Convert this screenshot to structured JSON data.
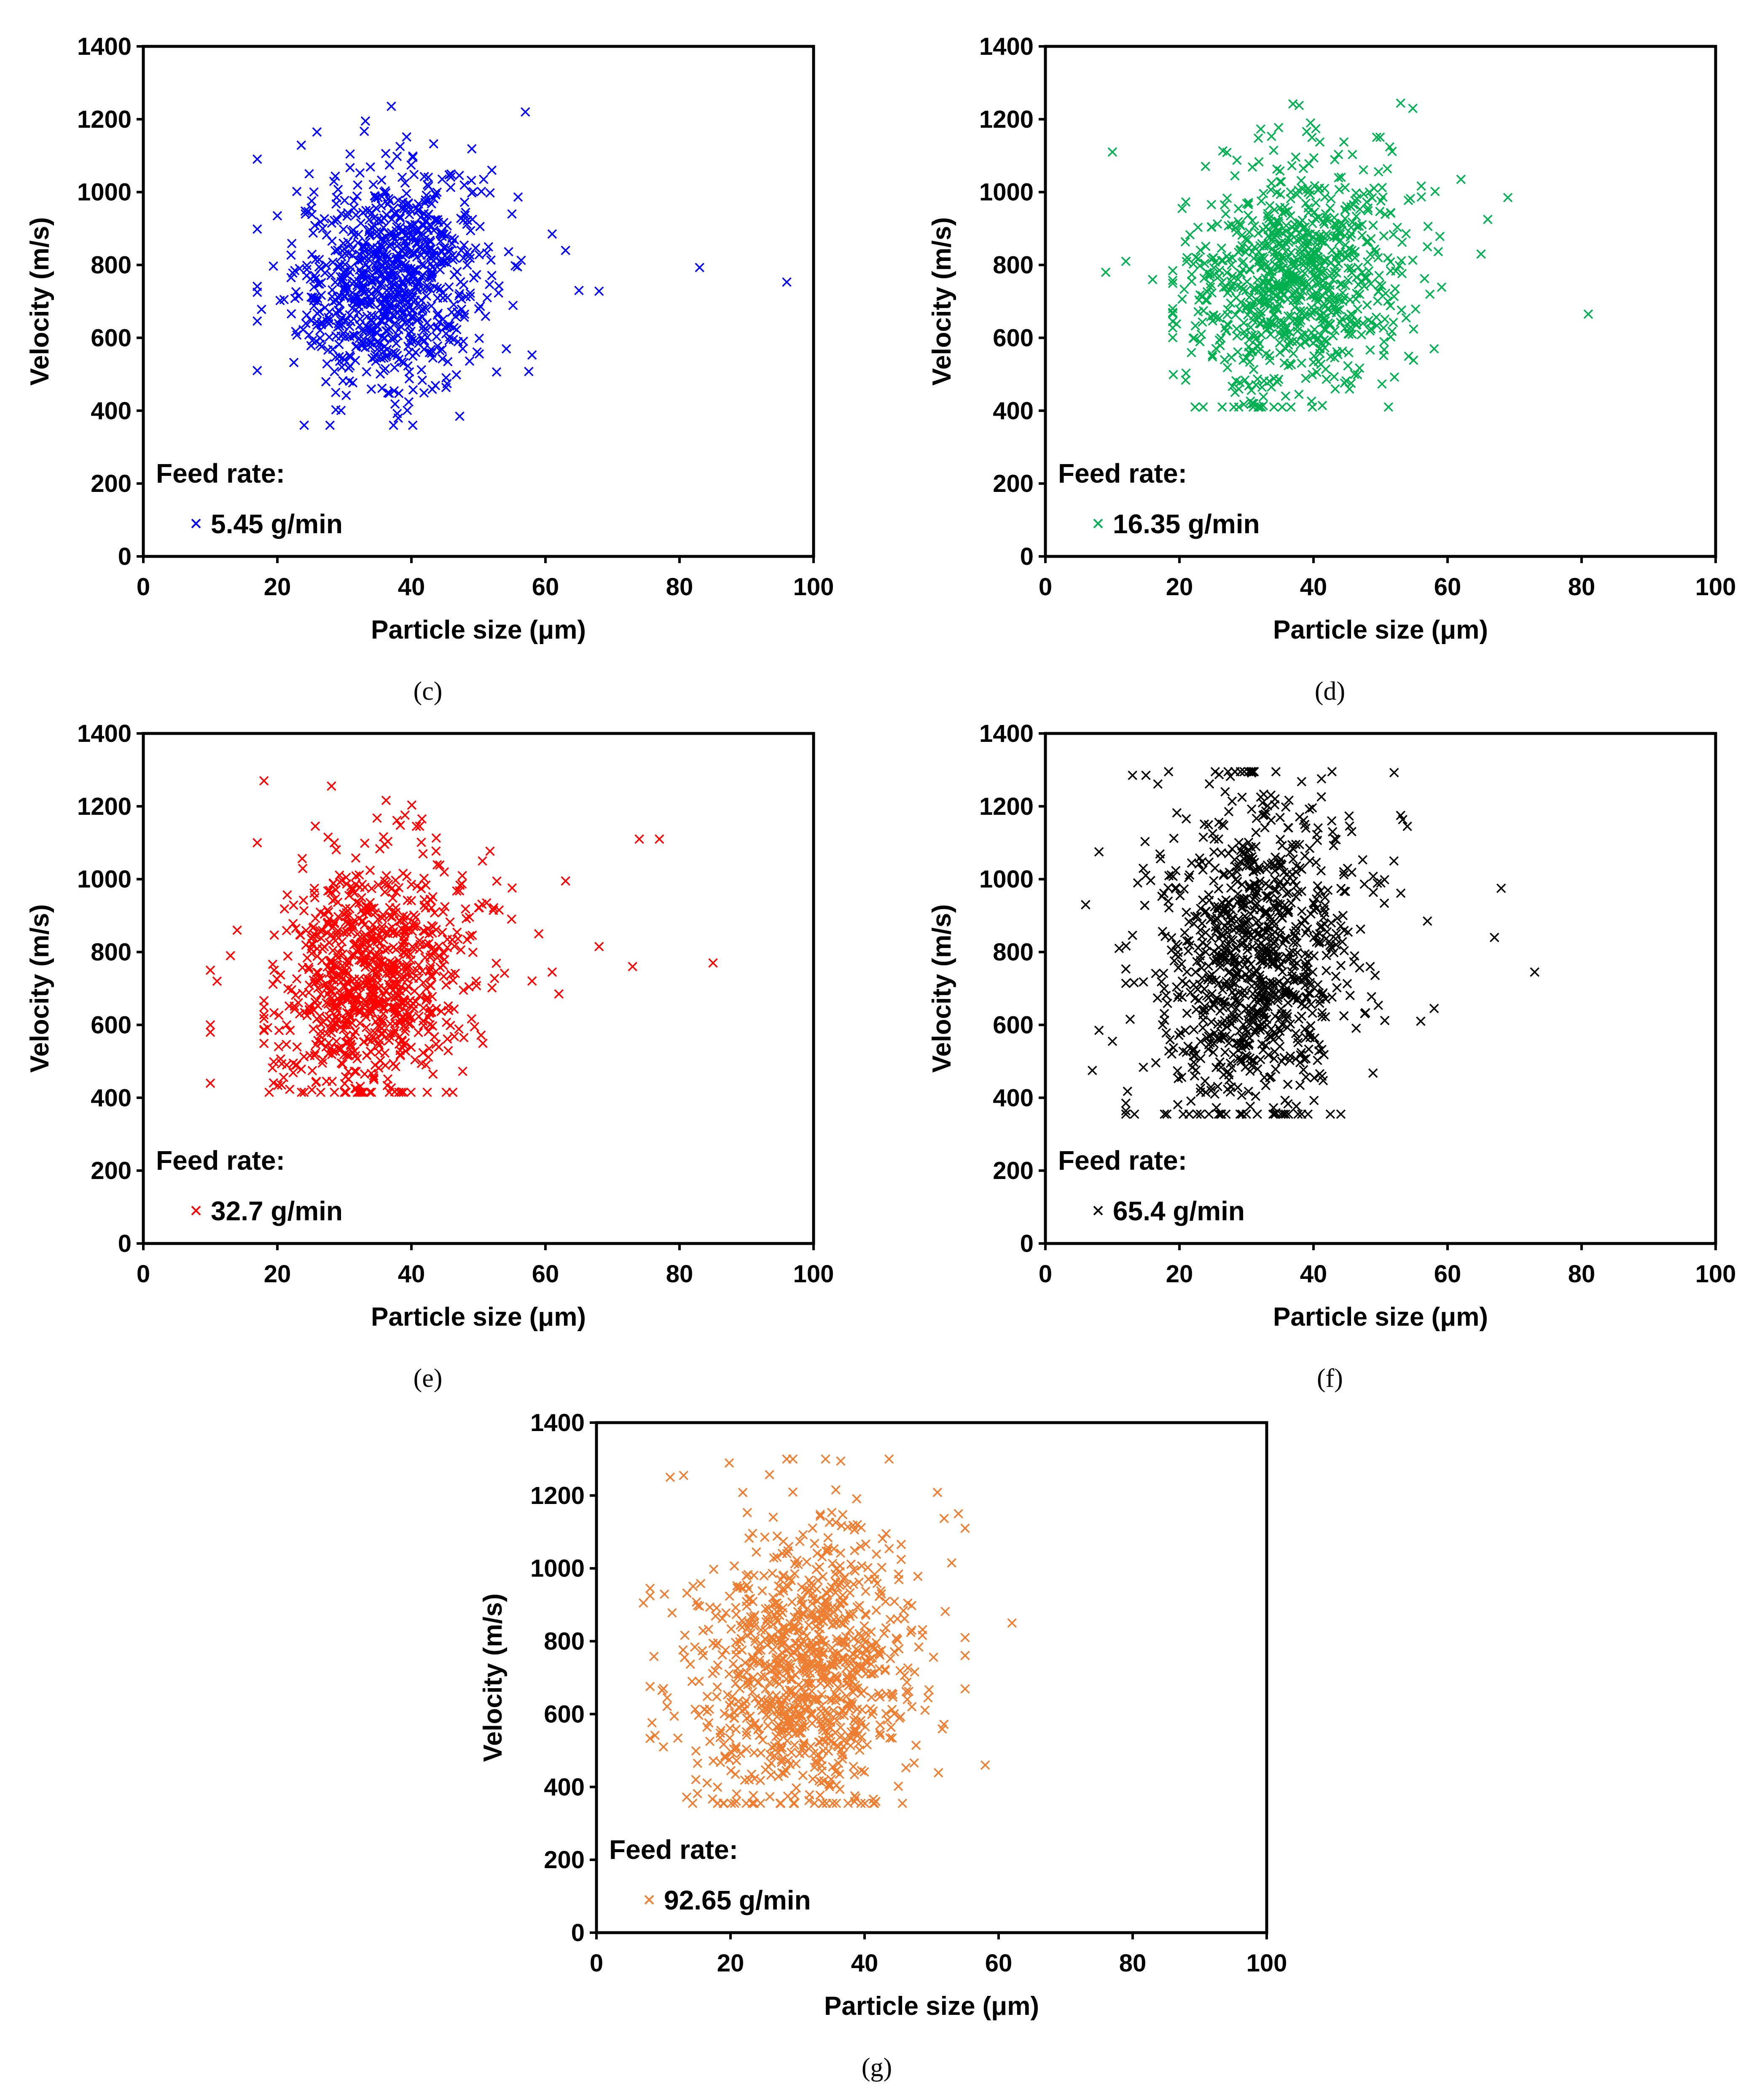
{
  "figure": {
    "panels": [
      {
        "id": "c",
        "caption_label": "(c)",
        "legend_title": "Feed rate:",
        "legend_entry": "5.45 g/min",
        "color": "#0000ff"
      },
      {
        "id": "d",
        "caption_label": "(d)",
        "legend_title": "Feed rate:",
        "legend_entry": "16.35 g/min",
        "color": "#00b050"
      },
      {
        "id": "e",
        "caption_label": "(e)",
        "legend_title": "Feed rate:",
        "legend_entry": "32.7 g/min",
        "color": "#ff0000"
      },
      {
        "id": "f",
        "caption_label": "(f)",
        "legend_title": "Feed rate:",
        "legend_entry": "65.4 g/min",
        "color": "#000000"
      },
      {
        "id": "g",
        "caption_label": "(g)",
        "legend_title": "Feed rate:",
        "legend_entry": "92.65 g/min",
        "color": "#ed7d31"
      }
    ]
  },
  "chart_data": [
    {
      "panel": "c",
      "type": "scatter",
      "marker": "x",
      "color": "#0000ff",
      "xlabel": "Particle size (μm)",
      "ylabel": "Velocity (m/s)",
      "xlim": [
        0,
        100
      ],
      "ylim": [
        0,
        1400
      ],
      "xticks": [
        0,
        20,
        40,
        60,
        80,
        100
      ],
      "yticks": [
        0,
        200,
        400,
        600,
        800,
        1000,
        1200,
        1400
      ],
      "legend_title": "Feed rate:",
      "series": [
        {
          "name": "5.45 g/min"
        }
      ],
      "cloud": {
        "n": 900,
        "x_mean": 37,
        "x_sd": 7,
        "y_mean": 760,
        "y_sd": 150,
        "x_range": [
          17,
          66
        ],
        "y_range": [
          360,
          1270
        ]
      },
      "outliers": [
        [
          17,
          725
        ],
        [
          20,
          935
        ],
        [
          21,
          705
        ],
        [
          24,
          360
        ],
        [
          83,
          793
        ],
        [
          96,
          753
        ],
        [
          57,
          1220
        ],
        [
          61,
          885
        ],
        [
          63,
          840
        ],
        [
          65,
          730
        ],
        [
          68,
          728
        ],
        [
          52,
          1060
        ],
        [
          55,
          940
        ]
      ]
    },
    {
      "panel": "d",
      "type": "scatter",
      "marker": "x",
      "color": "#00b050",
      "xlabel": "Particle size (μm)",
      "ylabel": "Velocity (m/s)",
      "xlim": [
        0,
        100
      ],
      "ylim": [
        0,
        1400
      ],
      "xticks": [
        0,
        20,
        40,
        60,
        80,
        100
      ],
      "yticks": [
        0,
        200,
        400,
        600,
        800,
        1000,
        1200,
        1400
      ],
      "legend_title": "Feed rate:",
      "series": [
        {
          "name": "16.35 g/min"
        }
      ],
      "cloud": {
        "n": 900,
        "x_mean": 37,
        "x_sd": 8,
        "y_mean": 770,
        "y_sd": 160,
        "x_range": [
          19,
          66
        ],
        "y_range": [
          410,
          1290
        ]
      },
      "outliers": [
        [
          10,
          1110
        ],
        [
          9,
          780
        ],
        [
          12,
          810
        ],
        [
          16,
          760
        ],
        [
          19,
          680
        ],
        [
          69,
          985
        ],
        [
          81,
          665
        ],
        [
          66,
          925
        ],
        [
          62,
          1035
        ],
        [
          58,
          570
        ],
        [
          57,
          850
        ],
        [
          65,
          830
        ]
      ]
    },
    {
      "panel": "e",
      "type": "scatter",
      "marker": "x",
      "color": "#ff0000",
      "xlabel": "Particle size (μm)",
      "ylabel": "Velocity (m/s)",
      "xlim": [
        0,
        100
      ],
      "ylim": [
        0,
        1400
      ],
      "xticks": [
        0,
        20,
        40,
        60,
        80,
        100
      ],
      "yticks": [
        0,
        200,
        400,
        600,
        800,
        1000,
        1200,
        1400
      ],
      "legend_title": "Feed rate:",
      "series": [
        {
          "name": "32.7 g/min"
        }
      ],
      "cloud": {
        "n": 900,
        "x_mean": 34,
        "x_sd": 7,
        "y_mean": 730,
        "y_sd": 165,
        "x_range": [
          18,
          58
        ],
        "y_range": [
          415,
          1300
        ]
      },
      "outliers": [
        [
          10,
          440
        ],
        [
          10,
          580
        ],
        [
          10,
          600
        ],
        [
          10,
          750
        ],
        [
          11,
          720
        ],
        [
          13,
          790
        ],
        [
          14,
          860
        ],
        [
          17,
          1100
        ],
        [
          18,
          1270
        ],
        [
          63,
          995
        ],
        [
          62,
          685
        ],
        [
          68,
          815
        ],
        [
          73,
          760
        ],
        [
          74,
          1110
        ],
        [
          77,
          1110
        ],
        [
          85,
          770
        ],
        [
          59,
          850
        ],
        [
          61,
          745
        ]
      ]
    },
    {
      "panel": "f",
      "type": "scatter",
      "marker": "x",
      "color": "#000000",
      "xlabel": "Particle size (μm)",
      "ylabel": "Velocity (m/s)",
      "xlim": [
        0,
        100
      ],
      "ylim": [
        0,
        1400
      ],
      "xticks": [
        0,
        20,
        40,
        60,
        80,
        100
      ],
      "yticks": [
        0,
        200,
        400,
        600,
        800,
        1000,
        1200,
        1400
      ],
      "legend_title": "Feed rate:",
      "series": [
        {
          "name": "65.4 g/min"
        }
      ],
      "cloud": {
        "n": 1000,
        "x_mean": 31,
        "x_sd": 7.5,
        "y_mean": 770,
        "y_sd": 230,
        "x_range": [
          12,
          56
        ],
        "y_range": [
          355,
          1295
        ]
      },
      "outliers": [
        [
          6,
          930
        ],
        [
          7,
          475
        ],
        [
          8,
          585
        ],
        [
          8,
          1075
        ],
        [
          10,
          555
        ],
        [
          11,
          810
        ],
        [
          12,
          385
        ],
        [
          13,
          1285
        ],
        [
          15,
          1285
        ],
        [
          58,
          645
        ],
        [
          57,
          885
        ],
        [
          54,
          1145
        ],
        [
          67,
          840
        ],
        [
          68,
          975
        ],
        [
          73,
          745
        ],
        [
          53,
          1175
        ],
        [
          52,
          1050
        ]
      ]
    },
    {
      "panel": "g",
      "type": "scatter",
      "marker": "x",
      "color": "#ed7d31",
      "xlabel": "Particle size (μm)",
      "ylabel": "Velocity (m/s)",
      "xlim": [
        0,
        100
      ],
      "ylim": [
        0,
        1400
      ],
      "xticks": [
        0,
        20,
        40,
        60,
        80,
        100
      ],
      "yticks": [
        0,
        200,
        400,
        600,
        800,
        1000,
        1200,
        1400
      ],
      "legend_title": "Feed rate:",
      "series": [
        {
          "name": "92.65 g/min"
        }
      ],
      "cloud": {
        "n": 1000,
        "x_mean": 31,
        "x_sd": 8,
        "y_mean": 720,
        "y_sd": 200,
        "x_range": [
          8,
          55
        ],
        "y_range": [
          355,
          1300
        ]
      },
      "outliers": [
        [
          7,
          905
        ],
        [
          8,
          945
        ],
        [
          10,
          510
        ],
        [
          10,
          670
        ],
        [
          11,
          1250
        ],
        [
          13,
          1255
        ],
        [
          62,
          850
        ],
        [
          58,
          460
        ],
        [
          55,
          1110
        ],
        [
          54,
          1150
        ],
        [
          55,
          810
        ],
        [
          53,
          1015
        ]
      ]
    }
  ]
}
